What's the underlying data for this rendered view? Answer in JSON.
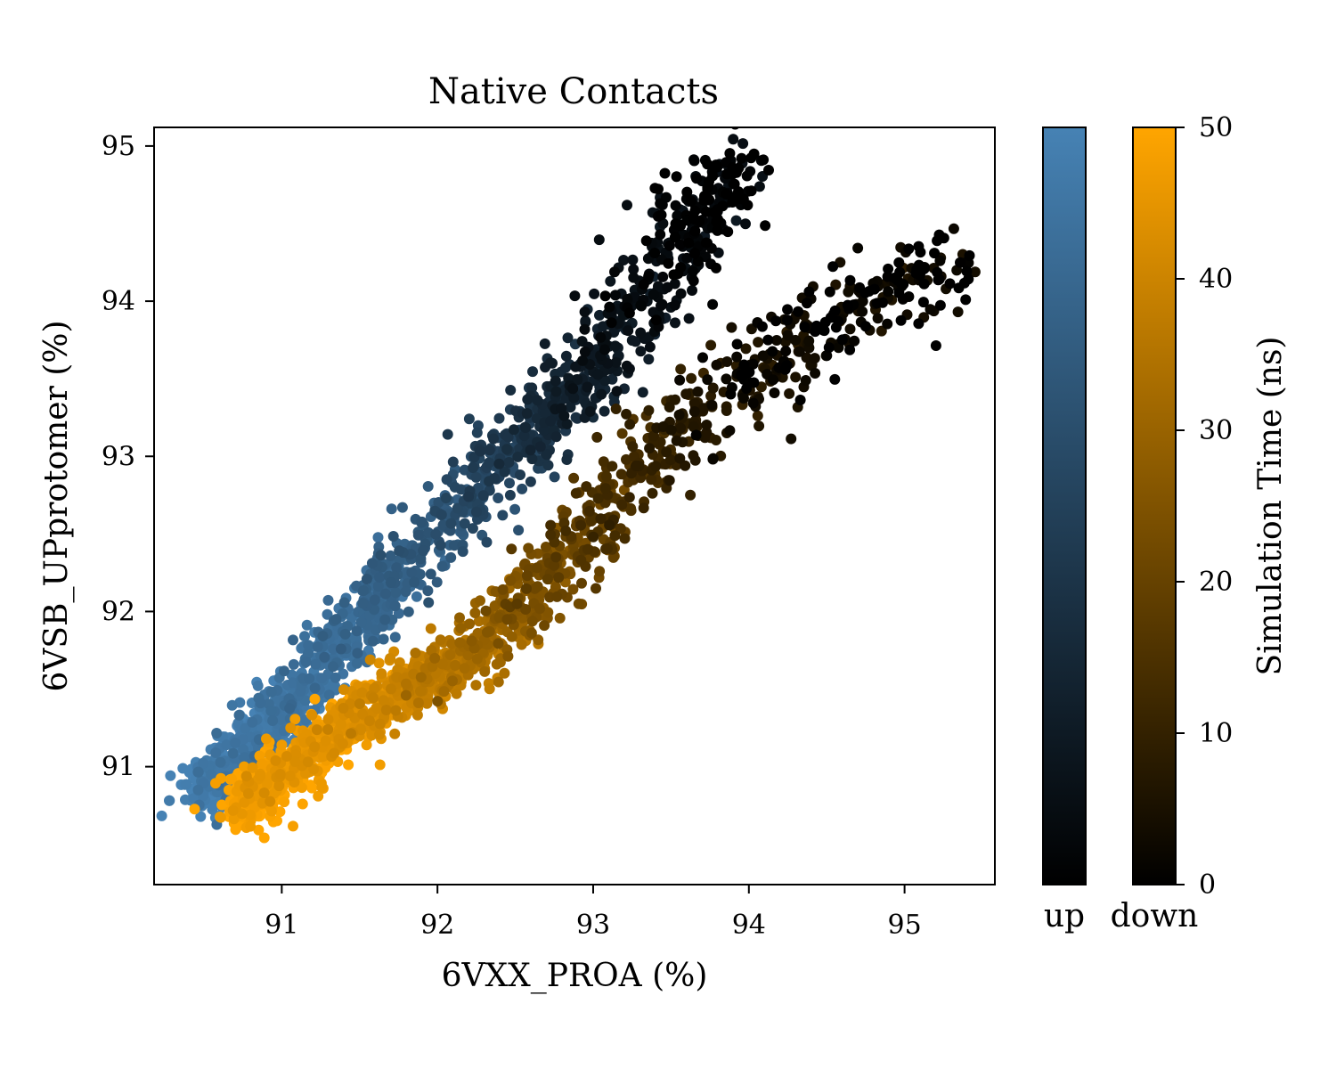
{
  "chart_data": {
    "type": "scatter",
    "title": "Native Contacts",
    "xlabel": "6VXX_PROA (%)",
    "ylabel": "6VSB_UPprotomer (%)",
    "xlim": [
      90.18,
      95.58
    ],
    "ylim": [
      90.24,
      95.12
    ],
    "x_ticks": [
      "91",
      "92",
      "93",
      "94",
      "95"
    ],
    "y_ticks": [
      "91",
      "92",
      "93",
      "94",
      "95"
    ],
    "grid": false,
    "colorbar": {
      "label": "Simulation Time (ns)",
      "range": [
        0,
        50
      ],
      "ticks": [
        "0",
        "10",
        "20",
        "30",
        "40",
        "50"
      ],
      "up_label": "up",
      "down_label": "down"
    },
    "series": [
      {
        "name": "up",
        "color_start": "#000000",
        "color_end": "#4682b4",
        "trend_path": [
          {
            "x": 90.5,
            "y": 90.85,
            "t": 50
          },
          {
            "x": 91.0,
            "y": 91.35,
            "t": 47
          },
          {
            "x": 91.5,
            "y": 91.95,
            "t": 42
          },
          {
            "x": 92.0,
            "y": 92.55,
            "t": 33
          },
          {
            "x": 92.5,
            "y": 93.05,
            "t": 22
          },
          {
            "x": 93.0,
            "y": 93.55,
            "t": 10
          },
          {
            "x": 93.5,
            "y": 94.3,
            "t": 3
          },
          {
            "x": 93.95,
            "y": 94.9,
            "t": 0
          }
        ]
      },
      {
        "name": "down",
        "color_start": "#000000",
        "color_end": "#ffa500",
        "trend_path": [
          {
            "x": 90.75,
            "y": 90.75,
            "t": 50
          },
          {
            "x": 91.25,
            "y": 91.15,
            "t": 47
          },
          {
            "x": 91.75,
            "y": 91.5,
            "t": 42
          },
          {
            "x": 92.25,
            "y": 91.75,
            "t": 33
          },
          {
            "x": 92.75,
            "y": 92.25,
            "t": 22
          },
          {
            "x": 93.25,
            "y": 92.85,
            "t": 12
          },
          {
            "x": 93.75,
            "y": 93.35,
            "t": 6
          },
          {
            "x": 94.5,
            "y": 93.85,
            "t": 2
          },
          {
            "x": 95.35,
            "y": 94.3,
            "t": 0
          }
        ]
      }
    ]
  }
}
